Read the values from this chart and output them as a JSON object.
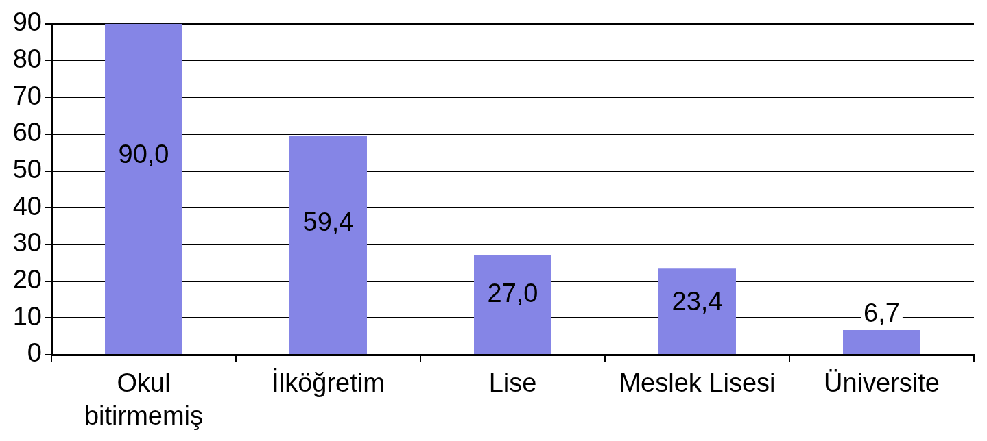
{
  "chart_data": {
    "type": "bar",
    "categories": [
      "Okul bitirmemiş",
      "İlköğretim",
      "Lise",
      "Meslek Lisesi",
      "Üniversite"
    ],
    "values": [
      90.0,
      59.4,
      27.0,
      23.4,
      6.7
    ],
    "value_labels": [
      "90,0",
      "59,4",
      "27,0",
      "23,4",
      "6,7"
    ],
    "color": "#8585e6",
    "ylim": [
      0,
      90
    ],
    "yticks": [
      0,
      10,
      20,
      30,
      40,
      50,
      60,
      70,
      80,
      90
    ],
    "grid": "y",
    "legend": false
  }
}
